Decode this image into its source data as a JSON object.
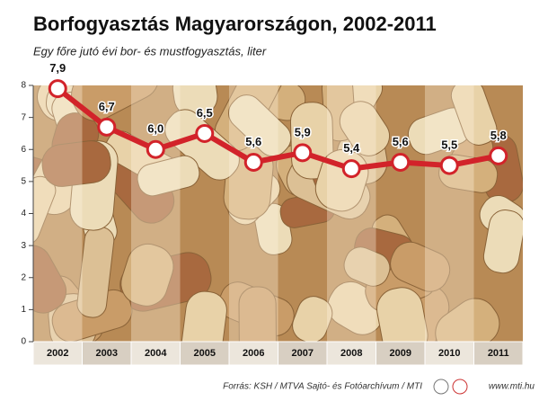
{
  "chart_data": {
    "type": "line",
    "title": "Borfogyasztás Magyarországon, 2002-2011",
    "subtitle": "Egy főre jutó évi bor- és mustfogyasztás, liter",
    "categories": [
      "2002",
      "2003",
      "2004",
      "2005",
      "2006",
      "2007",
      "2008",
      "2009",
      "2010",
      "2011"
    ],
    "values": [
      7.9,
      6.7,
      6.0,
      6.5,
      5.6,
      5.9,
      5.4,
      5.6,
      5.5,
      5.8
    ],
    "value_labels": [
      "7,9",
      "6,7",
      "6,0",
      "6,5",
      "5,6",
      "5,9",
      "5,4",
      "5,6",
      "5,5",
      "5,8"
    ],
    "color": "#d2232a",
    "ylim": [
      0,
      8
    ],
    "yticks": [
      0,
      1,
      2,
      3,
      4,
      5,
      6,
      7,
      8
    ],
    "source": "Forrás: KSH / MTVA Sajtó- és Fotóarchívum / MTI",
    "website": "www.mti.hu"
  }
}
